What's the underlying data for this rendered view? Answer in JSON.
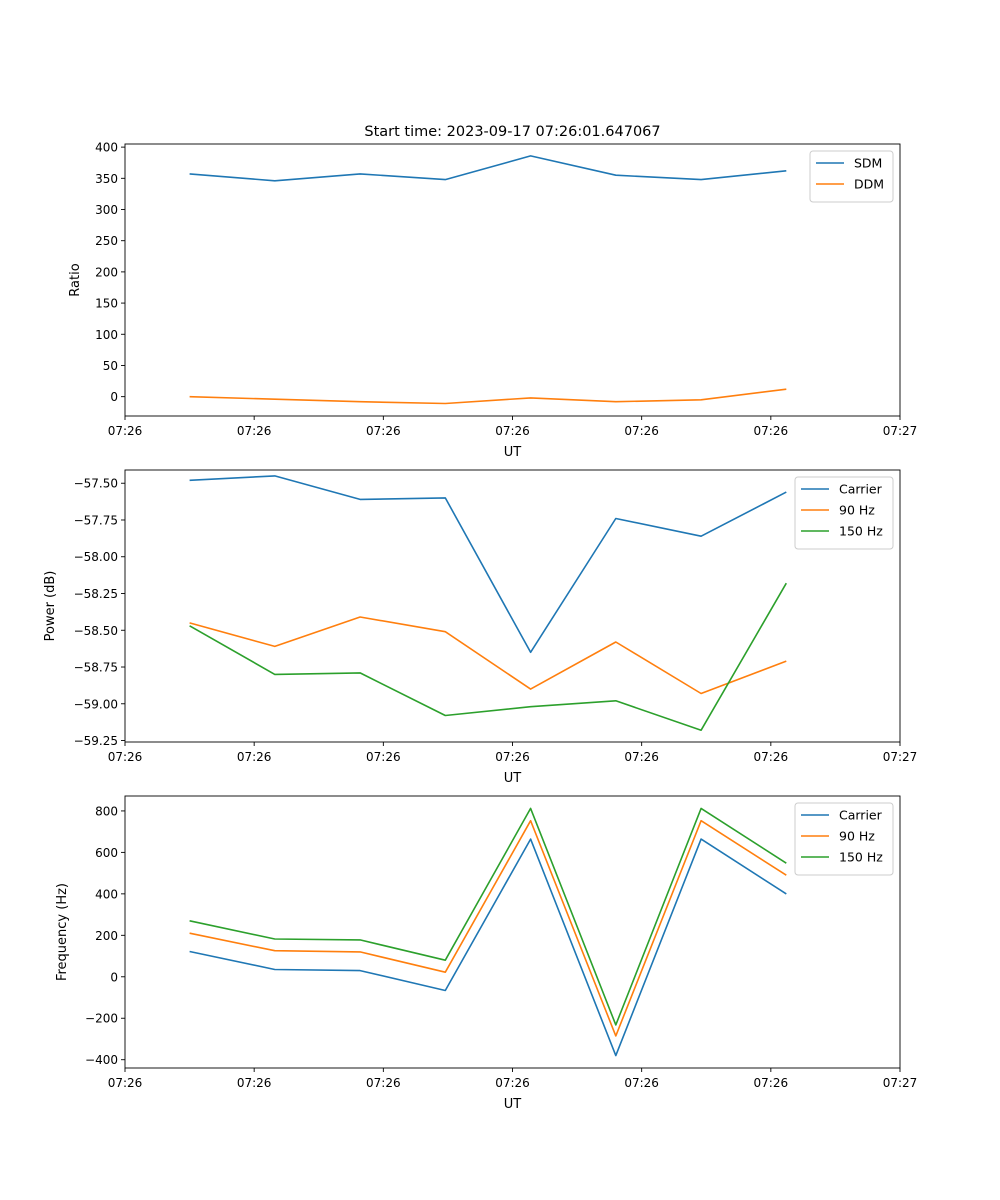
{
  "title": "Start time: 2023-09-17 07:26:01.647067",
  "chart_data": [
    {
      "type": "line",
      "title": "Start time: 2023-09-17 07:26:01.647067",
      "xlabel": "UT",
      "ylabel": "Ratio",
      "x": [
        0.5,
        1.16,
        1.82,
        2.48,
        3.14,
        3.8,
        4.46,
        5.12
      ],
      "xlim": [
        0,
        6
      ],
      "xticks": [
        0,
        1,
        2,
        3,
        4,
        5,
        6
      ],
      "xtick_labels": [
        "07:26",
        "07:26",
        "07:26",
        "07:26",
        "07:26",
        "07:26",
        "07:27"
      ],
      "ylim": [
        -31,
        405
      ],
      "yticks": [
        0,
        50,
        100,
        150,
        200,
        250,
        300,
        350,
        400
      ],
      "ytick_labels": [
        "0",
        "50",
        "100",
        "150",
        "200",
        "250",
        "300",
        "350",
        "400"
      ],
      "legend_position": "top-right",
      "series": [
        {
          "name": "SDM",
          "color": "#1f77b4",
          "values": [
            357,
            346,
            357,
            348,
            386,
            355,
            348,
            362
          ]
        },
        {
          "name": "DDM",
          "color": "#ff7f0e",
          "values": [
            0,
            -4,
            -8,
            -11,
            -2,
            -8,
            -5,
            12
          ]
        }
      ]
    },
    {
      "type": "line",
      "xlabel": "UT",
      "ylabel": "Power (dB)",
      "x": [
        0.5,
        1.16,
        1.82,
        2.48,
        3.14,
        3.8,
        4.46,
        5.12
      ],
      "xlim": [
        0,
        6
      ],
      "xticks": [
        0,
        1,
        2,
        3,
        4,
        5,
        6
      ],
      "xtick_labels": [
        "07:26",
        "07:26",
        "07:26",
        "07:26",
        "07:26",
        "07:26",
        "07:27"
      ],
      "ylim": [
        -59.26,
        -57.41
      ],
      "yticks": [
        -59.25,
        -59.0,
        -58.75,
        -58.5,
        -58.25,
        -58.0,
        -57.75,
        -57.5
      ],
      "ytick_labels": [
        "−59.25",
        "−59.00",
        "−58.75",
        "−58.50",
        "−58.25",
        "−58.00",
        "−57.75",
        "−57.50"
      ],
      "legend_position": "top-right",
      "series": [
        {
          "name": "Carrier",
          "color": "#1f77b4",
          "values": [
            -57.48,
            -57.45,
            -57.61,
            -57.6,
            -58.65,
            -57.74,
            -57.86,
            -57.56
          ]
        },
        {
          "name": "90 Hz",
          "color": "#ff7f0e",
          "values": [
            -58.45,
            -58.61,
            -58.41,
            -58.51,
            -58.9,
            -58.58,
            -58.93,
            -58.71
          ]
        },
        {
          "name": "150 Hz",
          "color": "#2ca02c",
          "values": [
            -58.47,
            -58.8,
            -58.79,
            -59.08,
            -59.02,
            -58.98,
            -59.18,
            -58.18
          ]
        }
      ]
    },
    {
      "type": "line",
      "xlabel": "UT",
      "ylabel": "Frequency (Hz)",
      "x": [
        0.5,
        1.16,
        1.82,
        2.48,
        3.14,
        3.8,
        4.46,
        5.12
      ],
      "xlim": [
        0,
        6
      ],
      "xticks": [
        0,
        1,
        2,
        3,
        4,
        5,
        6
      ],
      "xtick_labels": [
        "07:26",
        "07:26",
        "07:26",
        "07:26",
        "07:26",
        "07:26",
        "07:27"
      ],
      "ylim": [
        -440,
        872
      ],
      "yticks": [
        -400,
        -200,
        0,
        200,
        400,
        600,
        800
      ],
      "ytick_labels": [
        "−400",
        "−200",
        "0",
        "200",
        "400",
        "600",
        "800"
      ],
      "legend_position": "top-right",
      "series": [
        {
          "name": "Carrier",
          "color": "#1f77b4",
          "values": [
            122,
            35,
            30,
            -66,
            664,
            -380,
            664,
            400
          ]
        },
        {
          "name": "90 Hz",
          "color": "#ff7f0e",
          "values": [
            210,
            126,
            120,
            22,
            753,
            -285,
            753,
            490
          ]
        },
        {
          "name": "150 Hz",
          "color": "#2ca02c",
          "values": [
            270,
            182,
            178,
            80,
            812,
            -232,
            812,
            548
          ]
        }
      ]
    }
  ]
}
